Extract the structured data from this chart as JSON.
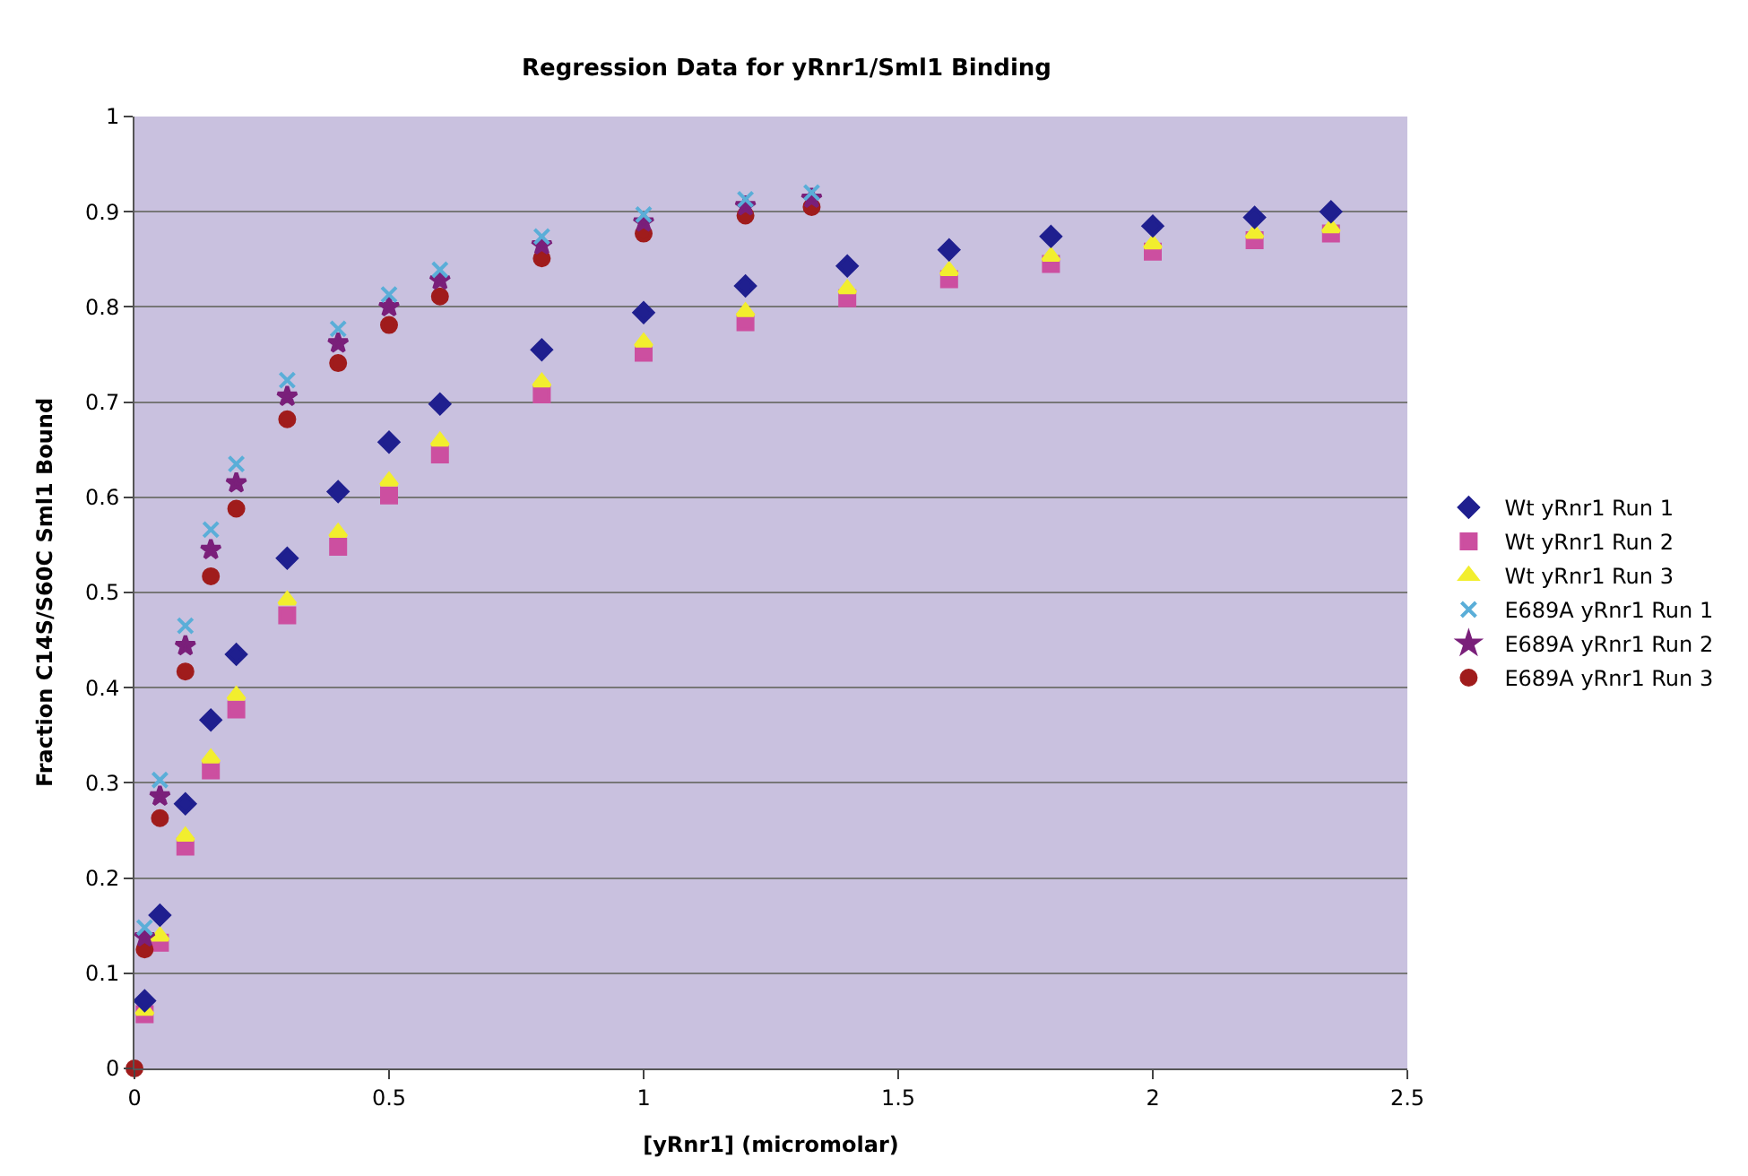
{
  "chart_data": {
    "type": "scatter",
    "title": "Regression Data for yRnr1/Sml1 Binding",
    "xlabel": "[yRnr1] (micromolar)",
    "ylabel": "Fraction C14S/S60C Sml1 Bound",
    "xlim": [
      0,
      2.5
    ],
    "xticks": [
      0,
      0.5,
      1,
      1.5,
      2,
      2.5
    ],
    "ylim": [
      0,
      1
    ],
    "yticks": [
      0,
      0.1,
      0.2,
      0.3,
      0.4,
      0.5,
      0.6,
      0.7,
      0.8,
      0.9,
      1
    ],
    "grid": "y",
    "legend": "right",
    "series": [
      {
        "name": "Wt yRnr1 Run 1",
        "color": "#1f1f8f",
        "marker": "diamond",
        "x": [
          0.02,
          0.05,
          0.1,
          0.15,
          0.2,
          0.3,
          0.4,
          0.5,
          0.6,
          0.8,
          1.0,
          1.2,
          1.4,
          1.6,
          1.8,
          2.0,
          2.2,
          2.35
        ],
        "values": [
          0.071,
          0.161,
          0.278,
          0.366,
          0.435,
          0.536,
          0.606,
          0.658,
          0.698,
          0.755,
          0.794,
          0.822,
          0.843,
          0.86,
          0.874,
          0.885,
          0.894,
          0.9
        ]
      },
      {
        "name": "Wt yRnr1 Run 2",
        "color": "#cc4fa0",
        "marker": "square",
        "x": [
          0.02,
          0.05,
          0.1,
          0.15,
          0.2,
          0.3,
          0.4,
          0.5,
          0.6,
          0.8,
          1.0,
          1.2,
          1.4,
          1.6,
          1.8,
          2.0,
          2.2,
          2.35
        ],
        "values": [
          0.057,
          0.132,
          0.233,
          0.313,
          0.377,
          0.476,
          0.548,
          0.602,
          0.645,
          0.708,
          0.752,
          0.784,
          0.809,
          0.829,
          0.845,
          0.858,
          0.87,
          0.877
        ]
      },
      {
        "name": "Wt yRnr1 Run 3",
        "color": "#f2ee2e",
        "marker": "triangle",
        "x": [
          0.02,
          0.05,
          0.1,
          0.15,
          0.2,
          0.3,
          0.4,
          0.5,
          0.6,
          0.8,
          1.0,
          1.2,
          1.4,
          1.6,
          1.8,
          2.0,
          2.2,
          2.35
        ],
        "values": [
          0.061,
          0.139,
          0.244,
          0.326,
          0.392,
          0.492,
          0.563,
          0.617,
          0.659,
          0.721,
          0.763,
          0.795,
          0.819,
          0.838,
          0.853,
          0.866,
          0.877,
          0.883
        ]
      },
      {
        "name": "E689A yRnr1 Run 1",
        "color": "#5aaed8",
        "marker": "cross",
        "x": [
          0.02,
          0.05,
          0.1,
          0.15,
          0.2,
          0.3,
          0.4,
          0.5,
          0.6,
          0.8,
          1.0,
          1.2,
          1.33
        ],
        "values": [
          0.148,
          0.303,
          0.465,
          0.566,
          0.635,
          0.723,
          0.777,
          0.813,
          0.839,
          0.874,
          0.897,
          0.913,
          0.92
        ]
      },
      {
        "name": "E689A yRnr1 Run 2",
        "color": "#7a1f7a",
        "marker": "star",
        "x": [
          0.02,
          0.05,
          0.1,
          0.15,
          0.2,
          0.3,
          0.4,
          0.5,
          0.6,
          0.8,
          1.0,
          1.2,
          1.33
        ],
        "values": [
          0.138,
          0.286,
          0.444,
          0.545,
          0.615,
          0.706,
          0.762,
          0.8,
          0.828,
          0.865,
          0.889,
          0.906,
          0.914
        ]
      },
      {
        "name": "E689A yRnr1 Run 3",
        "color": "#a01c1c",
        "marker": "circle",
        "x": [
          0,
          0.02,
          0.05,
          0.1,
          0.15,
          0.2,
          0.3,
          0.4,
          0.5,
          0.6,
          0.8,
          1.0,
          1.2,
          1.33
        ],
        "values": [
          0,
          0.125,
          0.263,
          0.417,
          0.517,
          0.588,
          0.682,
          0.741,
          0.781,
          0.811,
          0.851,
          0.877,
          0.896,
          0.905
        ]
      }
    ]
  }
}
